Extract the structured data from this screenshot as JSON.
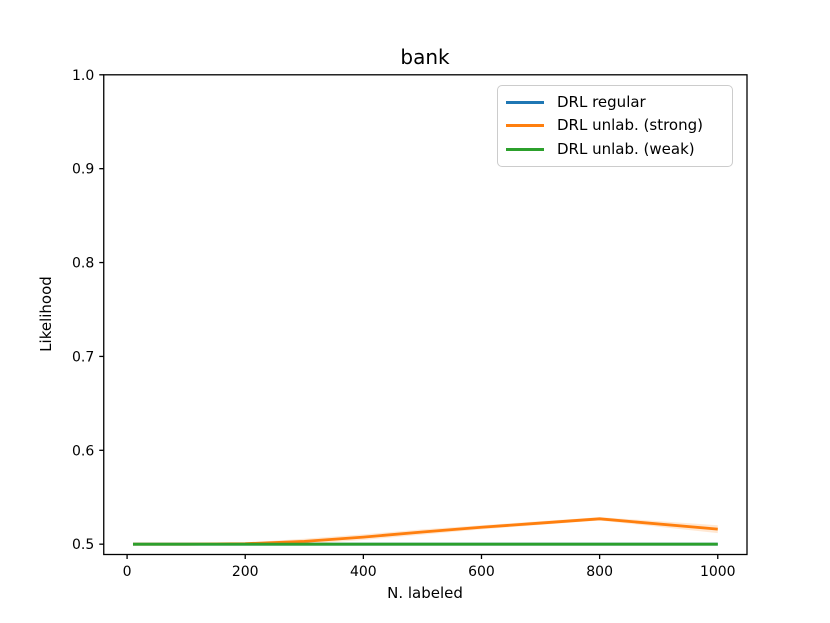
{
  "figure": {
    "background": "#ffffff",
    "text_color": "#000000"
  },
  "chart_data": {
    "type": "line",
    "title": "bank",
    "xlabel": "N. labeled",
    "ylabel": "Likelihood",
    "xlim": [
      -39.5,
      1049.5
    ],
    "ylim": [
      0.489,
      1.0
    ],
    "grid": false,
    "spine_color": "#000000",
    "xticks": [
      {
        "v": 0,
        "label": "0"
      },
      {
        "v": 200,
        "label": "200"
      },
      {
        "v": 400,
        "label": "400"
      },
      {
        "v": 600,
        "label": "600"
      },
      {
        "v": 800,
        "label": "800"
      },
      {
        "v": 1000,
        "label": "1000"
      }
    ],
    "yticks": [
      {
        "v": 0.5,
        "label": "0.5"
      },
      {
        "v": 0.6,
        "label": "0.6"
      },
      {
        "v": 0.7,
        "label": "0.7"
      },
      {
        "v": 0.8,
        "label": "0.8"
      },
      {
        "v": 0.9,
        "label": "0.9"
      },
      {
        "v": 1.0,
        "label": "1.0"
      }
    ],
    "legend": {
      "position": "upper-right",
      "edge_color": "#cccccc",
      "background": "#ffffff"
    },
    "series": [
      {
        "name": "DRL regular",
        "color": "#1f77b4",
        "x": [
          10,
          100,
          200,
          300,
          400,
          500,
          600,
          700,
          800,
          1000
        ],
        "y": [
          0.5,
          0.5,
          0.5,
          0.5,
          0.5,
          0.5,
          0.5,
          0.5,
          0.5,
          0.5
        ]
      },
      {
        "name": "DRL unlab. (strong)",
        "color": "#ff7f0e",
        "x": [
          10,
          100,
          200,
          300,
          400,
          500,
          600,
          700,
          800,
          1000
        ],
        "y": [
          0.5,
          0.5,
          0.5005,
          0.503,
          0.5075,
          0.513,
          0.518,
          0.5225,
          0.527,
          0.516
        ],
        "band_delta": [
          0.0008,
          0.0008,
          0.0012,
          0.0028,
          0.003,
          0.0028,
          0.0022,
          0.002,
          0.0018,
          0.0042
        ],
        "band_alpha": 0.18
      },
      {
        "name": "DRL unlab. (weak)",
        "color": "#2ca02c",
        "x": [
          10,
          100,
          200,
          300,
          400,
          500,
          600,
          700,
          800,
          1000
        ],
        "y": [
          0.5,
          0.5,
          0.5,
          0.5,
          0.5,
          0.5,
          0.5,
          0.5,
          0.5,
          0.5
        ]
      }
    ]
  }
}
